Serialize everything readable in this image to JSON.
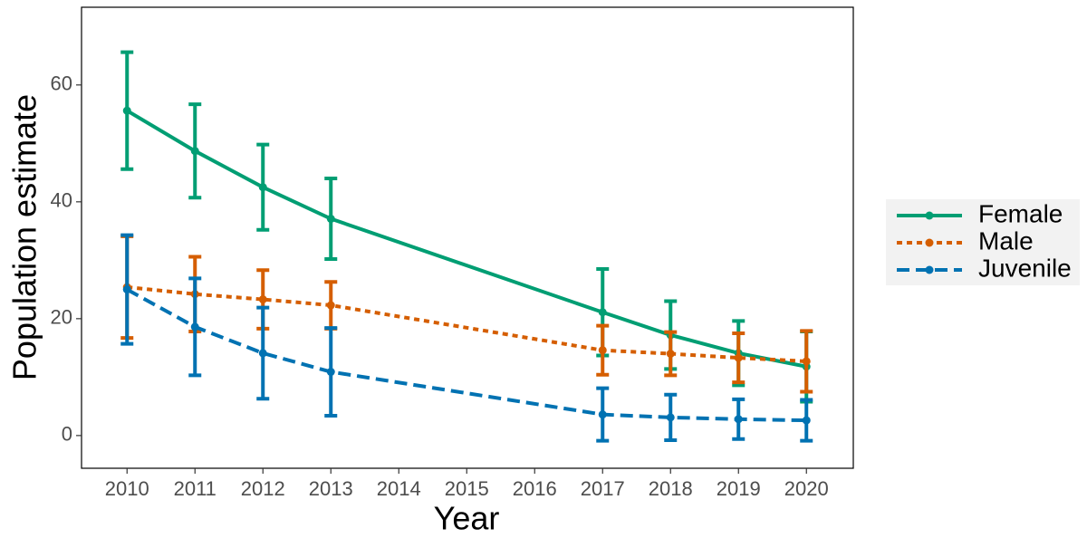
{
  "chart_data": {
    "type": "line",
    "x_label": "Year",
    "y_label": "Population estimate",
    "x": [
      2010,
      2011,
      2012,
      2013,
      2017,
      2018,
      2019,
      2020
    ],
    "xlim": [
      2009.33,
      2020.69
    ],
    "xticks": [
      2010,
      2011,
      2012,
      2013,
      2014,
      2015,
      2016,
      2017,
      2018,
      2019,
      2020
    ],
    "ylim": [
      -5.6,
      73.3
    ],
    "yticks": [
      0,
      20,
      40,
      60
    ],
    "grid": false,
    "legend": "right",
    "series": [
      {
        "name": "Female",
        "color": "#009E73",
        "linestyle": "solid",
        "values": [
          55.6,
          48.7,
          42.5,
          37.1,
          21.1,
          17.2,
          14.1,
          11.8
        ],
        "errors": [
          10,
          8,
          7.3,
          6.9,
          7.4,
          5.8,
          5.5,
          6
        ]
      },
      {
        "name": "Male",
        "color": "#D55E00",
        "linestyle": "dotted",
        "values": [
          25.4,
          24.2,
          23.3,
          22.3,
          14.6,
          14.0,
          13.3,
          12.7
        ],
        "errors": [
          8.7,
          6.4,
          5,
          4,
          4.2,
          3.7,
          4.2,
          5.2
        ]
      },
      {
        "name": "Juvenile",
        "color": "#0072B2",
        "linestyle": "dashed",
        "values": [
          25.0,
          18.6,
          14.1,
          10.9,
          3.6,
          3.1,
          2.8,
          2.6
        ],
        "errors": [
          9.3,
          8.3,
          7.8,
          7.5,
          4.5,
          3.9,
          3.4,
          3.5
        ]
      }
    ]
  }
}
